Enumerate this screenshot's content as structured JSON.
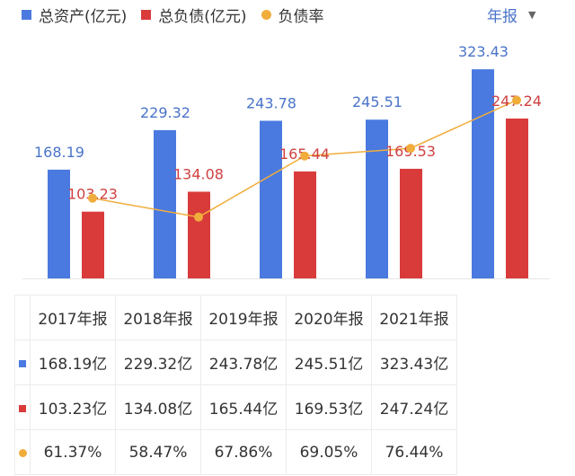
{
  "chart_data": {
    "type": "bar",
    "categories": [
      "2017年报",
      "2018年报",
      "2019年报",
      "2020年报",
      "2021年报"
    ],
    "series": [
      {
        "name": "总资产(亿元)",
        "type": "bar",
        "color": "#4a7ae0",
        "values": [
          168.19,
          229.32,
          243.78,
          245.51,
          323.43
        ],
        "labels": [
          "168.19",
          "229.32",
          "243.78",
          "245.51",
          "323.43"
        ],
        "table": [
          "168.19亿",
          "229.32亿",
          "243.78亿",
          "245.51亿",
          "323.43亿"
        ]
      },
      {
        "name": "总负债(亿元)",
        "type": "bar",
        "color": "#d93b3b",
        "values": [
          103.23,
          134.08,
          165.44,
          169.53,
          247.24
        ],
        "labels": [
          "103.23",
          "134.08",
          "165.44",
          "169.53",
          "247.24"
        ],
        "table": [
          "103.23亿",
          "134.08亿",
          "165.44亿",
          "169.53亿",
          "247.24亿"
        ]
      },
      {
        "name": "负债率",
        "type": "line",
        "color": "#f0ad3c",
        "values": [
          61.37,
          58.47,
          67.86,
          69.05,
          76.44
        ],
        "table": [
          "61.37%",
          "58.47%",
          "67.86%",
          "69.05%",
          "76.44%"
        ]
      }
    ],
    "legend": "top-left",
    "grid": false
  },
  "period_selector": {
    "label": "年报",
    "icon": "triangle-down-icon"
  }
}
